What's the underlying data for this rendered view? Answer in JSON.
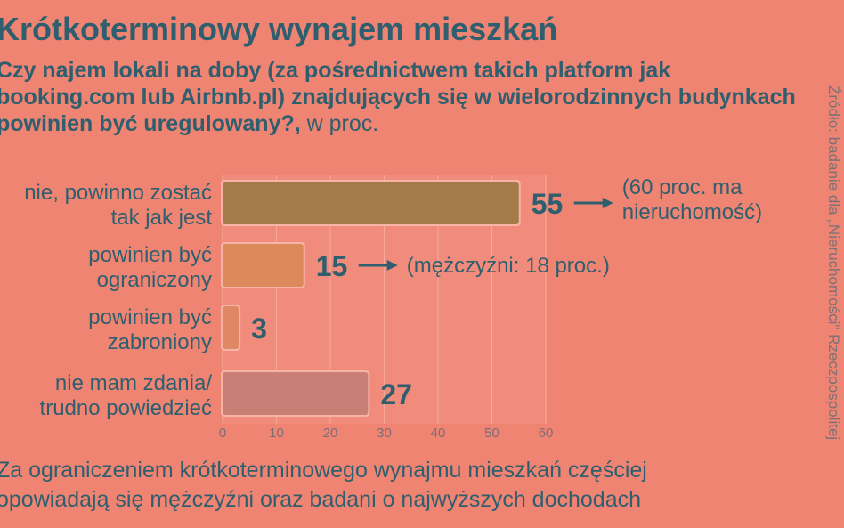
{
  "title": "Krótkoterminowy wynajem mieszkań",
  "subtitle": {
    "question": "Czy najem lokali na doby (za pośrednictwem takich platform jak booking.com lub Airbnb.pl) znajdujących się w wielorodzinnych budynkach powinien być uregulowany?,",
    "unit": " w proc."
  },
  "source": "Źródło: badanie dla „Nieruchomości\" Rzeczpospolitej",
  "footnote": [
    "Za ograniczeniem krótkoterminowego wynajmu mieszkań częściej",
    "opowiadają się mężczyźni oraz badani o najwyższych dochodach"
  ],
  "colors": {
    "background": "#ef8473",
    "text": "#2f5f6e",
    "bars": [
      "#a47a4a",
      "#dc8a5c",
      "#e08764",
      "#c97f76"
    ],
    "track": "#f29282"
  },
  "chart_data": {
    "type": "bar",
    "orientation": "horizontal",
    "categories": [
      [
        "nie, powinno zostać",
        "tak jak jest"
      ],
      [
        "powinien być",
        "ograniczony"
      ],
      [
        "powinien być",
        "zabroniony"
      ],
      [
        "nie mam zdania/",
        "trudno powiedzieć"
      ]
    ],
    "values": [
      55,
      15,
      3,
      27
    ],
    "annotations": [
      [
        "(60 proc. ma",
        "nieruchomość)"
      ],
      [
        "(mężczyźni: 18 proc.)"
      ],
      [],
      []
    ],
    "xlim": [
      0,
      60
    ],
    "xticks": [
      0,
      10,
      20,
      30,
      40,
      50,
      60
    ],
    "grid": true
  }
}
